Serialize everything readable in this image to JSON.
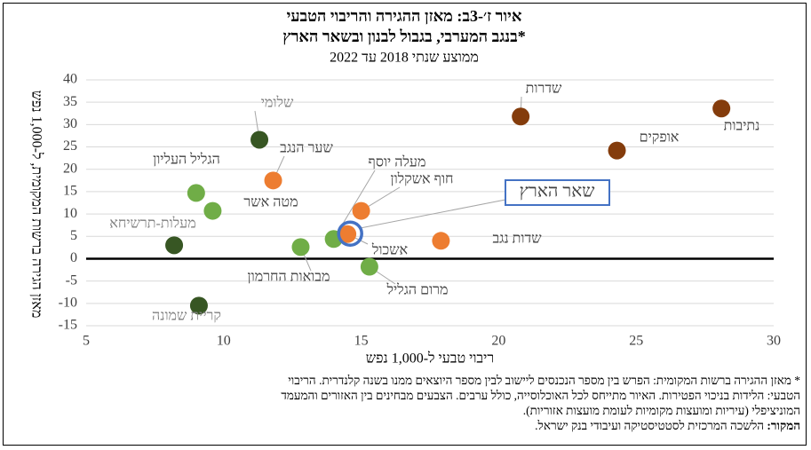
{
  "chart_data": {
    "type": "scatter",
    "title": "איור ז׳-3ב: מאזן ההגירה והריבוי הטבעי",
    "title2": "בנגב המערבי, בגבול לבנון ובשאר הארץ*",
    "subtitle": "ממוצע שנתי 2018 עד 2022",
    "x_label": "ריבוי טבעי ל-1,000 נפש",
    "y_label": "מאזן הגירה ברשות המקומית, ל-1,000 נפש",
    "labels": [
      "נתיבות",
      "שדרות",
      "אופקים",
      "שלומי",
      "שער הנגב",
      "הגליל העליון",
      "מטה אשר",
      "מעלות-תרשיחא",
      "קריית שמונה",
      "מבואות החרמון",
      "מעלה יוסף",
      "חוף אשקלון",
      "אשכול",
      "מרום הגליל",
      "שדות נגב"
    ],
    "x": [
      28.1,
      20.8,
      24.3,
      11.3,
      11.8,
      9.0,
      9.6,
      8.2,
      9.1,
      12.8,
      14.0,
      15.0,
      14.5,
      15.3,
      17.9
    ],
    "values": [
      33.6,
      31.8,
      24.2,
      26.6,
      17.5,
      14.7,
      10.7,
      3.0,
      -10.5,
      2.6,
      4.4,
      10.7,
      5.5,
      -1.8,
      4.0
    ],
    "colors": [
      "#843c0c",
      "#843c0c",
      "#843c0c",
      "#375623",
      "#ed7d31",
      "#70ad47",
      "#70ad47",
      "#375623",
      "#375623",
      "#70ad47",
      "#70ad47",
      "#ed7d31",
      "#ed7d31",
      "#70ad47",
      "#ed7d31"
    ],
    "highlight": {
      "label": "שאר הארץ",
      "x": 14.6,
      "y": 5.6,
      "color": "#4472c4"
    },
    "xlim": [
      5,
      30
    ],
    "xticks": [
      5,
      10,
      15,
      20,
      25,
      30
    ],
    "ylim": [
      -15,
      40
    ],
    "yticks": [
      -15,
      -10,
      -5,
      0,
      5,
      10,
      15,
      20,
      25,
      30,
      35,
      40
    ],
    "grid": true
  },
  "notes": {
    "lines": [
      "* מאזן ההגירה ברשות המקומית: הפרש בין מספר הנכנסים ליישוב לבין מספר היוצאים ממנו בשנה קלנדרית. הריבוי",
      "הטבעי: הלידות בניכוי הפטירות. האיור מתייחס לכל האוכלוסייה, כולל ערבים. הצבעים מבחינים בין האזורים והמעמד",
      "המוניציפלי (עיריות ומועצות מקומיות לעומת מועצות אזוריות)."
    ],
    "source_label": "המקור:",
    "source": "הלשכה המרכזית לסטטיסטיקה ועיבודי בנק ישראל."
  }
}
